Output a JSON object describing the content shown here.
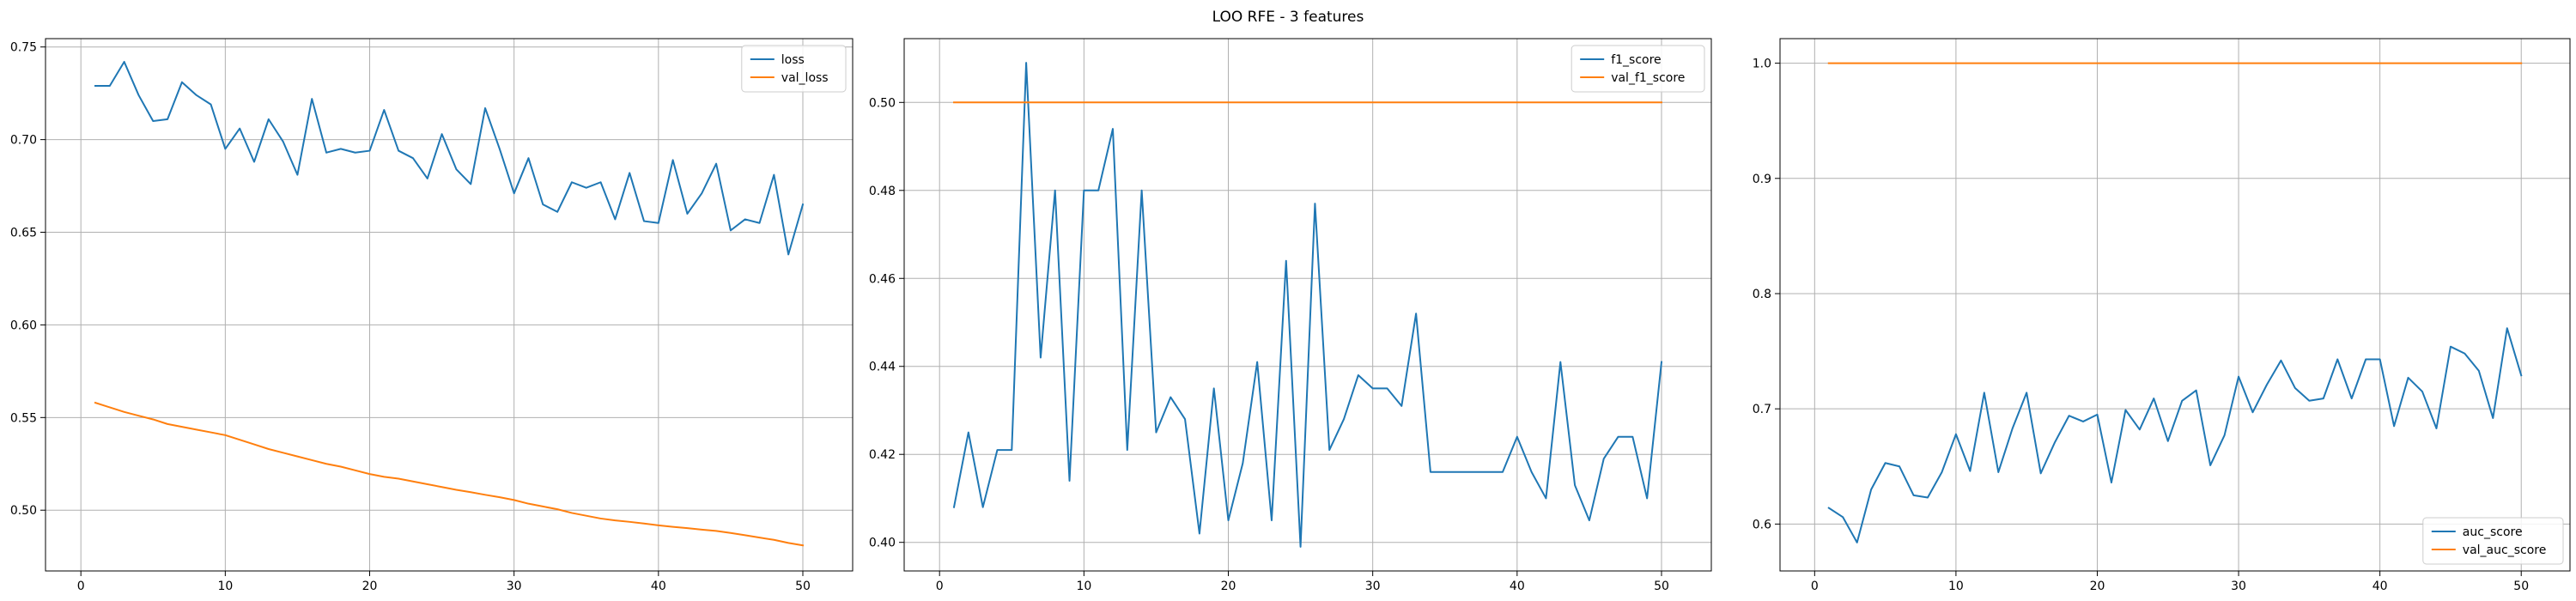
{
  "figure": {
    "title": "LOO RFE - 3 features"
  },
  "colors": {
    "series1": "#1f77b4",
    "series2": "#ff7f0e",
    "grid": "#b0b0b0",
    "axis": "#000000"
  },
  "chart_data": [
    {
      "type": "line",
      "title": "",
      "xlabel": "",
      "ylabel": "",
      "xlim": [
        -2.45,
        53.45
      ],
      "ylim": [
        0.4672,
        0.7545
      ],
      "xticks": [
        0,
        10,
        20,
        30,
        40,
        50
      ],
      "yticks": [
        0.5,
        0.55,
        0.6,
        0.65,
        0.7,
        0.75
      ],
      "ytick_format": 2,
      "grid": true,
      "legend_position": "upper right",
      "x": [
        1,
        2,
        3,
        4,
        5,
        6,
        7,
        8,
        9,
        10,
        11,
        12,
        13,
        14,
        15,
        16,
        17,
        18,
        19,
        20,
        21,
        22,
        23,
        24,
        25,
        26,
        27,
        28,
        29,
        30,
        31,
        32,
        33,
        34,
        35,
        36,
        37,
        38,
        39,
        40,
        41,
        42,
        43,
        44,
        45,
        46,
        47,
        48,
        49,
        50
      ],
      "series": [
        {
          "name": "loss",
          "values": [
            0.729,
            0.729,
            0.742,
            0.724,
            0.71,
            0.711,
            0.731,
            0.724,
            0.719,
            0.695,
            0.706,
            0.688,
            0.711,
            0.699,
            0.681,
            0.722,
            0.693,
            0.695,
            0.693,
            0.694,
            0.716,
            0.694,
            0.69,
            0.679,
            0.703,
            0.684,
            0.676,
            0.717,
            0.695,
            0.671,
            0.69,
            0.665,
            0.661,
            0.677,
            0.674,
            0.677,
            0.657,
            0.682,
            0.656,
            0.655,
            0.689,
            0.66,
            0.671,
            0.687,
            0.651,
            0.657,
            0.655,
            0.681,
            0.638,
            0.665
          ]
        },
        {
          "name": "val_loss",
          "values": [
            0.558,
            0.5555,
            0.553,
            0.551,
            0.549,
            0.5465,
            0.545,
            0.5435,
            0.542,
            0.5405,
            0.538,
            0.5355,
            0.533,
            0.531,
            0.529,
            0.527,
            0.525,
            0.5235,
            0.5215,
            0.5195,
            0.518,
            0.517,
            0.5155,
            0.514,
            0.5125,
            0.511,
            0.5097,
            0.5083,
            0.507,
            0.5055,
            0.5035,
            0.502,
            0.5005,
            0.4985,
            0.497,
            0.4955,
            0.4945,
            0.4937,
            0.4928,
            0.4918,
            0.491,
            0.4903,
            0.4895,
            0.4888,
            0.4877,
            0.4865,
            0.4852,
            0.484,
            0.4823,
            0.481
          ]
        }
      ]
    },
    {
      "type": "line",
      "title": "",
      "xlabel": "",
      "ylabel": "",
      "xlim": [
        -2.45,
        53.45
      ],
      "ylim": [
        0.3935,
        0.5145
      ],
      "xticks": [
        0,
        10,
        20,
        30,
        40,
        50
      ],
      "yticks": [
        0.4,
        0.42,
        0.44,
        0.46,
        0.48,
        0.5
      ],
      "ytick_format": 2,
      "grid": true,
      "legend_position": "upper right",
      "x": [
        1,
        2,
        3,
        4,
        5,
        6,
        7,
        8,
        9,
        10,
        11,
        12,
        13,
        14,
        15,
        16,
        17,
        18,
        19,
        20,
        21,
        22,
        23,
        24,
        25,
        26,
        27,
        28,
        29,
        30,
        31,
        32,
        33,
        34,
        35,
        36,
        37,
        38,
        39,
        40,
        41,
        42,
        43,
        44,
        45,
        46,
        47,
        48,
        49,
        50
      ],
      "series": [
        {
          "name": "f1_score",
          "values": [
            0.408,
            0.425,
            0.408,
            0.421,
            0.421,
            0.509,
            0.442,
            0.48,
            0.414,
            0.48,
            0.48,
            0.494,
            0.421,
            0.48,
            0.425,
            0.433,
            0.428,
            0.402,
            0.435,
            0.405,
            0.418,
            0.441,
            0.405,
            0.464,
            0.399,
            0.477,
            0.421,
            0.428,
            0.438,
            0.435,
            0.435,
            0.431,
            0.452,
            0.416,
            0.416,
            0.416,
            0.416,
            0.416,
            0.416,
            0.424,
            0.416,
            0.41,
            0.441,
            0.413,
            0.405,
            0.419,
            0.424,
            0.424,
            0.41,
            0.441
          ]
        },
        {
          "name": "val_f1_score",
          "values": [
            0.5,
            0.5,
            0.5,
            0.5,
            0.5,
            0.5,
            0.5,
            0.5,
            0.5,
            0.5,
            0.5,
            0.5,
            0.5,
            0.5,
            0.5,
            0.5,
            0.5,
            0.5,
            0.5,
            0.5,
            0.5,
            0.5,
            0.5,
            0.5,
            0.5,
            0.5,
            0.5,
            0.5,
            0.5,
            0.5,
            0.5,
            0.5,
            0.5,
            0.5,
            0.5,
            0.5,
            0.5,
            0.5,
            0.5,
            0.5,
            0.5,
            0.5,
            0.5,
            0.5,
            0.5,
            0.5,
            0.5,
            0.5,
            0.5,
            0.5
          ]
        }
      ]
    },
    {
      "type": "line",
      "title": "",
      "xlabel": "",
      "ylabel": "",
      "xlim": [
        -2.45,
        53.45
      ],
      "ylim": [
        0.5593,
        1.0213
      ],
      "xticks": [
        0,
        10,
        20,
        30,
        40,
        50
      ],
      "yticks": [
        0.6,
        0.7,
        0.8,
        0.9,
        1.0
      ],
      "ytick_format": 1,
      "grid": true,
      "legend_position": "lower right",
      "x": [
        1,
        2,
        3,
        4,
        5,
        6,
        7,
        8,
        9,
        10,
        11,
        12,
        13,
        14,
        15,
        16,
        17,
        18,
        19,
        20,
        21,
        22,
        23,
        24,
        25,
        26,
        27,
        28,
        29,
        30,
        31,
        32,
        33,
        34,
        35,
        36,
        37,
        38,
        39,
        40,
        41,
        42,
        43,
        44,
        45,
        46,
        47,
        48,
        49,
        50
      ],
      "series": [
        {
          "name": "auc_score",
          "values": [
            0.614,
            0.606,
            0.584,
            0.63,
            0.653,
            0.65,
            0.625,
            0.623,
            0.645,
            0.678,
            0.646,
            0.714,
            0.645,
            0.683,
            0.714,
            0.644,
            0.671,
            0.694,
            0.689,
            0.695,
            0.636,
            0.699,
            0.682,
            0.709,
            0.672,
            0.707,
            0.716,
            0.651,
            0.677,
            0.728,
            0.697,
            0.721,
            0.742,
            0.718,
            0.707,
            0.709,
            0.743,
            0.709,
            0.743,
            0.743,
            0.685,
            0.727,
            0.715,
            0.683,
            0.754,
            0.748,
            0.733,
            0.692,
            0.77,
            0.729
          ]
        },
        {
          "name": "val_auc_score",
          "values": [
            1,
            1,
            1,
            1,
            1,
            1,
            1,
            1,
            1,
            1,
            1,
            1,
            1,
            1,
            1,
            1,
            1,
            1,
            1,
            1,
            1,
            1,
            1,
            1,
            1,
            1,
            1,
            1,
            1,
            1,
            1,
            1,
            1,
            1,
            1,
            1,
            1,
            1,
            1,
            1,
            1,
            1,
            1,
            1,
            1,
            1,
            1,
            1,
            1,
            1
          ]
        }
      ]
    }
  ]
}
